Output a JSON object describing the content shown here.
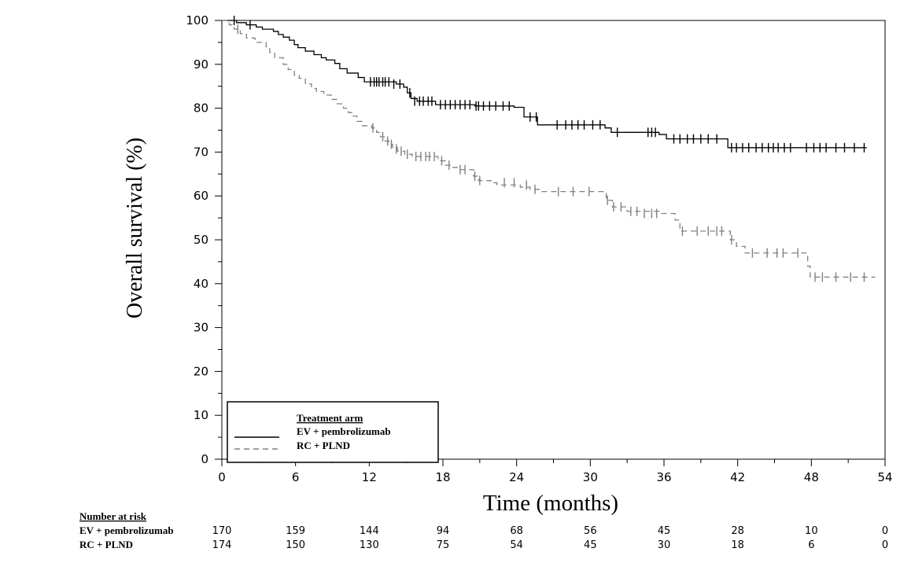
{
  "chart_data": {
    "type": "line",
    "subtype": "kaplan-meier",
    "title": "",
    "xlabel": "Time (months)",
    "ylabel": "Overall survival (%)",
    "xlim": [
      0,
      54
    ],
    "ylim": [
      0,
      100
    ],
    "x_ticks": [
      0,
      6,
      12,
      18,
      24,
      30,
      36,
      42,
      48,
      54
    ],
    "y_ticks": [
      0,
      10,
      20,
      30,
      40,
      50,
      60,
      70,
      80,
      90,
      100
    ],
    "grid": false,
    "legend": {
      "title": "Treatment arm",
      "placement": "bottom-left",
      "entries": [
        "EV + pembrolizumab",
        "RC + PLND"
      ]
    },
    "series": [
      {
        "name": "EV + pembrolizumab",
        "color": "#000000",
        "line_style": "solid",
        "steps": [
          [
            0,
            100
          ],
          [
            1.2,
            99.5
          ],
          [
            2.0,
            99.0
          ],
          [
            2.8,
            98.5
          ],
          [
            3.3,
            98.0
          ],
          [
            4.2,
            97.5
          ],
          [
            4.6,
            96.8
          ],
          [
            5.0,
            96.2
          ],
          [
            5.5,
            95.5
          ],
          [
            5.9,
            94.5
          ],
          [
            6.2,
            93.8
          ],
          [
            6.8,
            93.0
          ],
          [
            7.5,
            92.2
          ],
          [
            8.1,
            91.5
          ],
          [
            8.5,
            91.0
          ],
          [
            9.2,
            90.2
          ],
          [
            9.6,
            89.0
          ],
          [
            10.2,
            88.0
          ],
          [
            11.1,
            87.0
          ],
          [
            11.6,
            86.0
          ],
          [
            14.2,
            85.5
          ],
          [
            14.8,
            84.8
          ],
          [
            15.1,
            83.5
          ],
          [
            15.4,
            82.2
          ],
          [
            15.9,
            81.6
          ],
          [
            17.4,
            80.8
          ],
          [
            20.6,
            80.5
          ],
          [
            23.8,
            80.2
          ],
          [
            24.6,
            78.0
          ],
          [
            25.7,
            76.2
          ],
          [
            31.2,
            75.5
          ],
          [
            31.7,
            74.5
          ],
          [
            35.6,
            74.0
          ],
          [
            36.2,
            73.0
          ],
          [
            41.2,
            71.0
          ],
          [
            52.5,
            71.0
          ]
        ],
        "censors": [
          [
            1.0,
            100
          ],
          [
            2.3,
            99
          ],
          [
            12.1,
            86
          ],
          [
            12.4,
            86
          ],
          [
            12.6,
            86
          ],
          [
            12.8,
            86
          ],
          [
            13.1,
            86
          ],
          [
            13.3,
            86
          ],
          [
            13.6,
            86
          ],
          [
            14.0,
            85.5
          ],
          [
            14.5,
            85.5
          ],
          [
            15.3,
            83.5
          ],
          [
            15.7,
            81.6
          ],
          [
            16.1,
            81.6
          ],
          [
            16.4,
            81.6
          ],
          [
            16.8,
            81.6
          ],
          [
            17.1,
            81.6
          ],
          [
            17.8,
            80.8
          ],
          [
            18.2,
            80.8
          ],
          [
            18.6,
            80.8
          ],
          [
            19.0,
            80.8
          ],
          [
            19.4,
            80.8
          ],
          [
            19.8,
            80.8
          ],
          [
            20.2,
            80.8
          ],
          [
            20.7,
            80.5
          ],
          [
            20.9,
            80.5
          ],
          [
            21.3,
            80.5
          ],
          [
            21.8,
            80.5
          ],
          [
            22.3,
            80.5
          ],
          [
            22.9,
            80.5
          ],
          [
            23.4,
            80.5
          ],
          [
            25.1,
            78.0
          ],
          [
            25.6,
            78.0
          ],
          [
            27.3,
            76.2
          ],
          [
            28.0,
            76.2
          ],
          [
            28.5,
            76.2
          ],
          [
            29.0,
            76.2
          ],
          [
            29.5,
            76.2
          ],
          [
            30.2,
            76.2
          ],
          [
            30.8,
            76.2
          ],
          [
            32.2,
            74.5
          ],
          [
            34.7,
            74.5
          ],
          [
            35.0,
            74.5
          ],
          [
            35.3,
            74.5
          ],
          [
            36.8,
            73.0
          ],
          [
            37.3,
            73.0
          ],
          [
            37.9,
            73.0
          ],
          [
            38.4,
            73.0
          ],
          [
            39.0,
            73.0
          ],
          [
            39.6,
            73.0
          ],
          [
            40.3,
            73.0
          ],
          [
            41.5,
            71.0
          ],
          [
            41.9,
            71.0
          ],
          [
            42.4,
            71.0
          ],
          [
            42.9,
            71.0
          ],
          [
            43.5,
            71.0
          ],
          [
            44.0,
            71.0
          ],
          [
            44.5,
            71.0
          ],
          [
            44.9,
            71.0
          ],
          [
            45.3,
            71.0
          ],
          [
            45.8,
            71.0
          ],
          [
            46.3,
            71.0
          ],
          [
            47.6,
            71.0
          ],
          [
            48.2,
            71.0
          ],
          [
            48.7,
            71.0
          ],
          [
            49.2,
            71.0
          ],
          [
            50.0,
            71.0
          ],
          [
            50.7,
            71.0
          ],
          [
            51.5,
            71.0
          ],
          [
            52.3,
            71.0
          ]
        ]
      },
      {
        "name": "RC + PLND",
        "color": "#808080",
        "line_style": "dashed",
        "steps": [
          [
            0,
            100
          ],
          [
            0.6,
            99
          ],
          [
            1.0,
            98
          ],
          [
            1.5,
            97
          ],
          [
            2.0,
            96
          ],
          [
            2.7,
            95
          ],
          [
            3.6,
            94
          ],
          [
            3.9,
            92.7
          ],
          [
            4.3,
            91.5
          ],
          [
            5.0,
            90.0
          ],
          [
            5.4,
            88.8
          ],
          [
            5.9,
            87.5
          ],
          [
            6.3,
            86.8
          ],
          [
            6.8,
            85.5
          ],
          [
            7.3,
            84.5
          ],
          [
            7.7,
            83.8
          ],
          [
            8.3,
            83.0
          ],
          [
            8.9,
            82.0
          ],
          [
            9.4,
            81.0
          ],
          [
            9.9,
            80.0
          ],
          [
            10.3,
            79.0
          ],
          [
            10.6,
            78.2
          ],
          [
            11.0,
            77.0
          ],
          [
            11.4,
            76.0
          ],
          [
            12.2,
            75.5
          ],
          [
            12.6,
            74.5
          ],
          [
            12.9,
            73.5
          ],
          [
            13.3,
            72.5
          ],
          [
            13.6,
            71.8
          ],
          [
            13.9,
            71.0
          ],
          [
            14.3,
            70.2
          ],
          [
            14.9,
            69.5
          ],
          [
            15.5,
            69.0
          ],
          [
            17.6,
            68.0
          ],
          [
            18.2,
            67.0
          ],
          [
            18.8,
            66.5
          ],
          [
            19.3,
            66.0
          ],
          [
            20.5,
            64.5
          ],
          [
            20.9,
            63.5
          ],
          [
            21.9,
            63.0
          ],
          [
            22.4,
            62.5
          ],
          [
            24.3,
            62.0
          ],
          [
            25.1,
            61.5
          ],
          [
            26.0,
            61.0
          ],
          [
            31.3,
            59.0
          ],
          [
            31.8,
            57.5
          ],
          [
            33.0,
            56.5
          ],
          [
            35.6,
            56.0
          ],
          [
            36.9,
            54.5
          ],
          [
            37.3,
            52.0
          ],
          [
            41.4,
            50.0
          ],
          [
            41.9,
            48.5
          ],
          [
            42.6,
            47.0
          ],
          [
            47.7,
            44.0
          ],
          [
            47.9,
            41.5
          ],
          [
            53.2,
            41.5
          ]
        ],
        "censors": [
          [
            1.3,
            98
          ],
          [
            12.3,
            75.5
          ],
          [
            13.1,
            73.5
          ],
          [
            13.5,
            72.5
          ],
          [
            13.8,
            71.8
          ],
          [
            14.2,
            70.7
          ],
          [
            14.6,
            70.2
          ],
          [
            15.1,
            69.5
          ],
          [
            15.8,
            69.0
          ],
          [
            16.2,
            69.0
          ],
          [
            16.6,
            69.0
          ],
          [
            16.9,
            69.0
          ],
          [
            17.3,
            69.0
          ],
          [
            17.9,
            68.0
          ],
          [
            18.5,
            67.0
          ],
          [
            19.4,
            66.0
          ],
          [
            19.8,
            66.0
          ],
          [
            20.6,
            64.5
          ],
          [
            21.0,
            63.5
          ],
          [
            23.0,
            63.0
          ],
          [
            23.8,
            63.0
          ],
          [
            24.8,
            62.5
          ],
          [
            25.5,
            61.5
          ],
          [
            27.4,
            61.0
          ],
          [
            28.6,
            61.0
          ],
          [
            29.9,
            61.0
          ],
          [
            31.4,
            59.0
          ],
          [
            31.9,
            57.5
          ],
          [
            32.5,
            57.5
          ],
          [
            33.3,
            56.5
          ],
          [
            33.8,
            56.5
          ],
          [
            34.4,
            56.0
          ],
          [
            35.0,
            56.0
          ],
          [
            35.4,
            56.0
          ],
          [
            37.5,
            52.0
          ],
          [
            38.7,
            52.0
          ],
          [
            39.6,
            52.0
          ],
          [
            40.3,
            52.0
          ],
          [
            40.7,
            52.0
          ],
          [
            41.5,
            50.0
          ],
          [
            43.2,
            47.0
          ],
          [
            44.4,
            47.0
          ],
          [
            45.2,
            47.0
          ],
          [
            45.7,
            47.0
          ],
          [
            46.9,
            47.0
          ],
          [
            48.3,
            41.5
          ],
          [
            48.9,
            41.5
          ],
          [
            50.0,
            41.5
          ],
          [
            51.2,
            41.5
          ],
          [
            52.3,
            41.5
          ]
        ]
      }
    ]
  },
  "risk_table": {
    "title": "Number at risk",
    "times": [
      0,
      6,
      12,
      18,
      24,
      30,
      36,
      42,
      48,
      54
    ],
    "rows": [
      {
        "label": "EV + pembrolizumab",
        "values": [
          "170",
          "159",
          "144",
          "94",
          "68",
          "56",
          "45",
          "28",
          "10",
          "0"
        ]
      },
      {
        "label": "RC + PLND",
        "values": [
          "174",
          "150",
          "130",
          "75",
          "54",
          "45",
          "30",
          "18",
          "6",
          "0"
        ]
      }
    ]
  }
}
